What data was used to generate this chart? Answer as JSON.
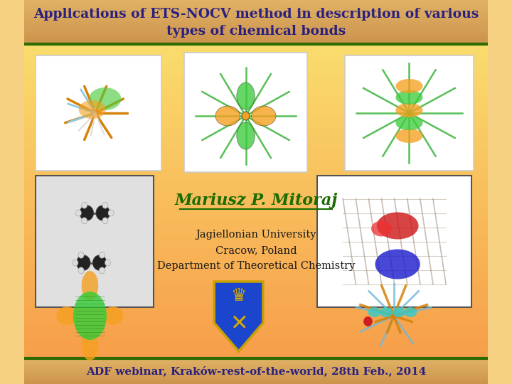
{
  "title_line1": "Applications of ETS-NOCV method in description of various",
  "title_line2": "types of chemical bonds",
  "title_text_color": "#2b2080",
  "header_border_color": "#2d6b00",
  "footer_text": "ADF webinar, Kraków-rest-of-the-world, 28th Feb., 2014",
  "footer_text_color": "#2b2080",
  "author_name": "Mariusz P. Mitoraj",
  "author_color": "#1a6b00",
  "affil_line1": "Jagiellonian University",
  "affil_line2": "Cracow, Poland",
  "affil_line3": "Department of Theoretical Chemistry",
  "affil_color": "#1a1a1a"
}
